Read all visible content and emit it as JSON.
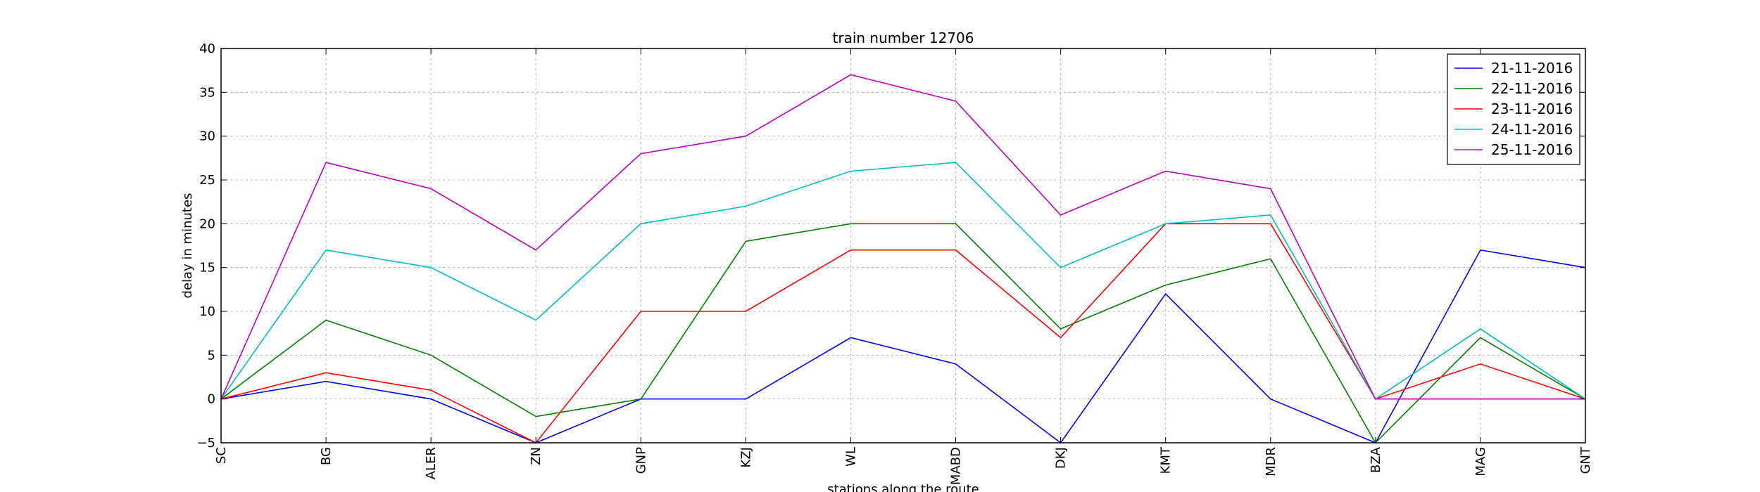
{
  "chart_data": {
    "type": "line",
    "title": "train number 12706",
    "xlabel": "stations along the route",
    "ylabel": "delay in minutes",
    "categories": [
      "SC",
      "BG",
      "ALER",
      "ZN",
      "GNP",
      "KZJ",
      "WL",
      "MABD",
      "DKJ",
      "KMT",
      "MDR",
      "BZA",
      "MAG",
      "GNT"
    ],
    "ylim": [
      -5,
      40
    ],
    "yticks": [
      -5,
      0,
      5,
      10,
      15,
      20,
      25,
      30,
      35,
      40
    ],
    "grid": true,
    "legend_position": "top-right",
    "series": [
      {
        "name": "21-11-2016",
        "color": "#0000ff",
        "values": [
          0,
          2,
          0,
          -5,
          0,
          0,
          7,
          4,
          -5,
          12,
          0,
          -5,
          17,
          15
        ]
      },
      {
        "name": "22-11-2016",
        "color": "#008000",
        "values": [
          0,
          9,
          5,
          -2,
          0,
          18,
          20,
          20,
          8,
          13,
          16,
          -5,
          7,
          0
        ]
      },
      {
        "name": "23-11-2016",
        "color": "#ff0000",
        "values": [
          0,
          3,
          1,
          -5,
          10,
          10,
          17,
          17,
          7,
          20,
          20,
          0,
          4,
          0
        ]
      },
      {
        "name": "24-11-2016",
        "color": "#00bfbf",
        "values": [
          0,
          17,
          15,
          9,
          20,
          22,
          26,
          27,
          15,
          20,
          21,
          0,
          8,
          0
        ]
      },
      {
        "name": "25-11-2016",
        "color": "#bf00bf",
        "values": [
          0,
          27,
          24,
          17,
          28,
          30,
          37,
          34,
          21,
          26,
          24,
          0,
          0,
          0
        ]
      }
    ]
  }
}
